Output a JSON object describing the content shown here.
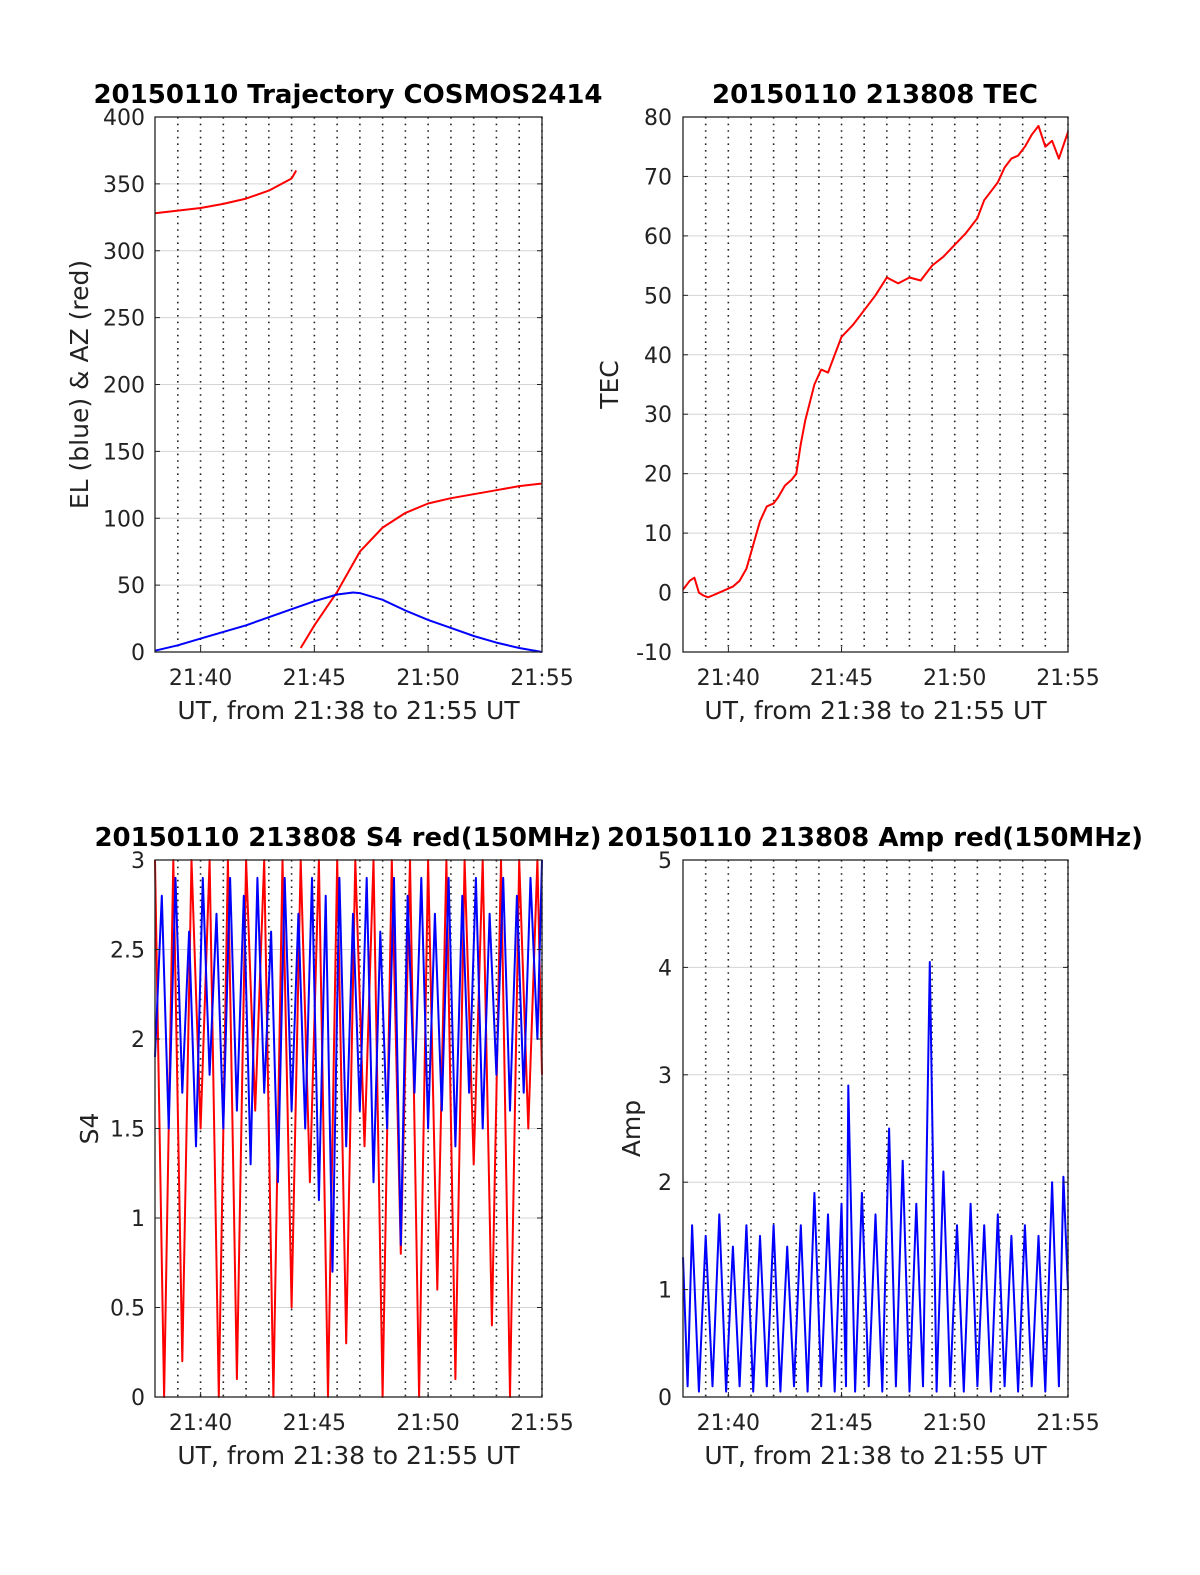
{
  "figure": {
    "background": "#ffffff",
    "colors": {
      "red": "#ff0000",
      "blue": "#0000ff",
      "axis": "#222222"
    }
  },
  "chart_data": [
    {
      "id": "trajectory",
      "type": "line",
      "title": "20150110 Trajectory COSMOS2414",
      "xlabel": "UT, from 21:38 to 21:55 UT",
      "ylabel": "EL (blue) & AZ (red)",
      "xlim": [
        21.6333,
        21.9167
      ],
      "ylim": [
        0,
        400
      ],
      "yticks": [
        0,
        50,
        100,
        150,
        200,
        250,
        300,
        350,
        400
      ],
      "ytick_labels": [
        "0",
        "50",
        "100",
        "150",
        "200",
        "250",
        "300",
        "350",
        "400"
      ],
      "xticks": [
        21.6667,
        21.75,
        21.8333,
        21.9167
      ],
      "xtick_labels": [
        "21:40",
        "21:45",
        "21:50",
        "21:55"
      ],
      "grid": "dotted-vertical-every-minute",
      "series": [
        {
          "color": "#ff0000",
          "x": [
            21.6333,
            21.65,
            21.6667,
            21.6833,
            21.7,
            21.7167,
            21.7333,
            21.7367,
            21.7368,
            21.74,
            21.75,
            21.7667,
            21.7833,
            21.8,
            21.8167,
            21.8333,
            21.85,
            21.8667,
            21.8833,
            21.9,
            21.9167
          ],
          "y": [
            328,
            330,
            332,
            335,
            339,
            345,
            354,
            360,
            null,
            3,
            20,
            45,
            75,
            93,
            104,
            111,
            115,
            118,
            121,
            124,
            126
          ]
        },
        {
          "color": "#0000ff",
          "x": [
            21.6333,
            21.65,
            21.6667,
            21.6833,
            21.7,
            21.7167,
            21.7333,
            21.75,
            21.7667,
            21.7783,
            21.7833,
            21.8,
            21.8167,
            21.8333,
            21.85,
            21.8667,
            21.8833,
            21.9,
            21.9167
          ],
          "y": [
            1,
            5,
            10,
            15,
            20,
            26,
            32,
            38,
            43,
            44.5,
            44,
            39,
            31,
            24,
            18,
            12,
            7,
            3,
            0
          ]
        }
      ]
    },
    {
      "id": "tec",
      "type": "line",
      "title": "20150110 213808 TEC",
      "xlabel": "UT, from 21:38 to 21:55 UT",
      "ylabel": "TEC",
      "xlim": [
        21.6333,
        21.9167
      ],
      "ylim": [
        -10,
        80
      ],
      "yticks": [
        -10,
        0,
        10,
        20,
        30,
        40,
        50,
        60,
        70,
        80
      ],
      "ytick_labels": [
        "-10",
        "0",
        "10",
        "20",
        "30",
        "40",
        "50",
        "60",
        "70",
        "80"
      ],
      "xticks": [
        21.6667,
        21.75,
        21.8333,
        21.9167
      ],
      "xtick_labels": [
        "21:40",
        "21:45",
        "21:50",
        "21:55"
      ],
      "grid": "dotted-vertical-every-minute",
      "series": [
        {
          "color": "#ff0000",
          "x": [
            21.6333,
            21.6383,
            21.6417,
            21.645,
            21.6483,
            21.6517,
            21.655,
            21.66,
            21.665,
            21.67,
            21.675,
            21.68,
            21.685,
            21.69,
            21.695,
            21.7,
            21.7033,
            21.7083,
            21.7133,
            21.7167,
            21.72,
            21.7233,
            21.7267,
            21.73,
            21.735,
            21.74,
            21.745,
            21.75,
            21.7583,
            21.7667,
            21.775,
            21.7833,
            21.7917,
            21.8,
            21.8083,
            21.8167,
            21.825,
            21.8333,
            21.8417,
            21.85,
            21.855,
            21.86,
            21.865,
            21.87,
            21.875,
            21.88,
            21.885,
            21.89,
            21.895,
            21.9,
            21.905,
            21.91,
            21.9167
          ],
          "y": [
            0.5,
            2,
            2.5,
            0,
            -0.5,
            -0.8,
            -0.5,
            0,
            0.5,
            1,
            2,
            4,
            8,
            12,
            14.5,
            15,
            16,
            18,
            19,
            20,
            25,
            29,
            32,
            35,
            37.5,
            37,
            40,
            43,
            45,
            47.5,
            50,
            53,
            52,
            53,
            52.5,
            55,
            56.5,
            58.5,
            60.5,
            63,
            66,
            67.5,
            69,
            71.5,
            73,
            73.5,
            75,
            77,
            78.5,
            75,
            76,
            73,
            77.5
          ]
        }
      ]
    },
    {
      "id": "s4",
      "type": "line",
      "title": "20150110 213808 S4 red(150MHz)",
      "xlabel": "UT, from 21:38 to 21:55 UT",
      "ylabel": "S4",
      "xlim": [
        21.6333,
        21.9167
      ],
      "ylim": [
        0,
        3
      ],
      "yticks": [
        0,
        0.5,
        1,
        1.5,
        2,
        2.5,
        3
      ],
      "ytick_labels": [
        "0",
        "0.5",
        "1",
        "1.5",
        "2",
        "2.5",
        "3"
      ],
      "xticks": [
        21.6667,
        21.75,
        21.8333,
        21.9167
      ],
      "xtick_labels": [
        "21:40",
        "21:45",
        "21:50",
        "21:55"
      ],
      "grid": "dotted-vertical-every-minute",
      "series": [
        {
          "color": "#ff0000",
          "x": [
            21.6333,
            21.64,
            21.6467,
            21.6533,
            21.66,
            21.6667,
            21.6733,
            21.68,
            21.6867,
            21.6933,
            21.7,
            21.7067,
            21.7133,
            21.72,
            21.7267,
            21.7333,
            21.74,
            21.7467,
            21.7533,
            21.76,
            21.7667,
            21.7733,
            21.78,
            21.7867,
            21.7933,
            21.8,
            21.8067,
            21.8133,
            21.82,
            21.8267,
            21.8333,
            21.84,
            21.8467,
            21.8533,
            21.86,
            21.8667,
            21.8733,
            21.88,
            21.8867,
            21.8933,
            21.9,
            21.9067,
            21.9133,
            21.9167
          ],
          "y": [
            3,
            0,
            3,
            0.2,
            3,
            1.5,
            3,
            0,
            3,
            0.1,
            3,
            1.6,
            3,
            0,
            3,
            0.5,
            3,
            1.2,
            3,
            0,
            3,
            0.3,
            3,
            1.4,
            3,
            0,
            3,
            0.8,
            3,
            0,
            3,
            0.6,
            3,
            0.1,
            3,
            1.3,
            3,
            0.4,
            3,
            0,
            3,
            1.5,
            3,
            1.8
          ]
        },
        {
          "color": "#0000ff",
          "x": [
            21.6333,
            21.6383,
            21.6433,
            21.6483,
            21.6533,
            21.6583,
            21.6633,
            21.6683,
            21.6733,
            21.6783,
            21.6833,
            21.6883,
            21.6933,
            21.6983,
            21.7033,
            21.7083,
            21.7133,
            21.7183,
            21.7233,
            21.7283,
            21.7333,
            21.7383,
            21.7433,
            21.7483,
            21.7533,
            21.7583,
            21.7633,
            21.7683,
            21.7733,
            21.7783,
            21.7833,
            21.7883,
            21.7933,
            21.7983,
            21.8033,
            21.8083,
            21.8133,
            21.8183,
            21.8233,
            21.8283,
            21.8333,
            21.8383,
            21.8433,
            21.8483,
            21.8533,
            21.8583,
            21.8633,
            21.8683,
            21.8733,
            21.8783,
            21.8833,
            21.8883,
            21.8933,
            21.8983,
            21.9033,
            21.9083,
            21.9133,
            21.9167
          ],
          "y": [
            1.9,
            2.8,
            1.5,
            2.9,
            1.7,
            2.6,
            1.4,
            2.9,
            1.8,
            2.7,
            1.5,
            2.9,
            1.6,
            2.8,
            1.3,
            2.9,
            1.7,
            2.6,
            1.2,
            2.9,
            1.6,
            2.7,
            1.5,
            2.9,
            1.1,
            2.8,
            0.7,
            2.9,
            1.4,
            2.7,
            1.6,
            2.9,
            1.2,
            2.6,
            1.5,
            2.9,
            0.85,
            2.8,
            1.7,
            2.9,
            1.5,
            2.7,
            1.6,
            2.9,
            1.4,
            2.8,
            1.7,
            2.9,
            1.5,
            2.7,
            1.8,
            2.9,
            1.6,
            2.8,
            1.7,
            2.9,
            2.0,
            3.0
          ]
        }
      ]
    },
    {
      "id": "amp",
      "type": "line",
      "title": "20150110 213808 Amp red(150MHz)",
      "xlabel": "UT, from 21:38 to 21:55 UT",
      "ylabel": "Amp",
      "xlim": [
        21.6333,
        21.9167
      ],
      "ylim": [
        0,
        5
      ],
      "yticks": [
        0,
        1,
        2,
        3,
        4,
        5
      ],
      "ytick_labels": [
        "0",
        "1",
        "2",
        "3",
        "4",
        "5"
      ],
      "xticks": [
        21.6667,
        21.75,
        21.8333,
        21.9167
      ],
      "xtick_labels": [
        "21:40",
        "21:45",
        "21:50",
        "21:55"
      ],
      "grid": "dotted-vertical-every-minute",
      "series": [
        {
          "color": "#0000ff",
          "x": [
            21.6333,
            21.6367,
            21.64,
            21.645,
            21.65,
            21.655,
            21.66,
            21.665,
            21.67,
            21.675,
            21.68,
            21.685,
            21.69,
            21.695,
            21.7,
            21.705,
            21.71,
            21.715,
            21.72,
            21.725,
            21.73,
            21.735,
            21.74,
            21.745,
            21.75,
            21.7533,
            21.755,
            21.76,
            21.765,
            21.77,
            21.775,
            21.78,
            21.785,
            21.79,
            21.795,
            21.8,
            21.805,
            21.81,
            21.815,
            21.82,
            21.825,
            21.83,
            21.835,
            21.84,
            21.845,
            21.85,
            21.855,
            21.86,
            21.865,
            21.87,
            21.875,
            21.88,
            21.885,
            21.89,
            21.895,
            21.9,
            21.905,
            21.91,
            21.9133,
            21.9167
          ],
          "y": [
            1.3,
            0.1,
            1.6,
            0.05,
            1.5,
            0.1,
            1.7,
            0.05,
            1.4,
            0.1,
            1.6,
            0.05,
            1.5,
            0.1,
            1.6,
            0.05,
            1.4,
            0.1,
            1.6,
            0.05,
            1.9,
            0.1,
            1.7,
            0.05,
            1.8,
            0.1,
            2.9,
            0.05,
            1.9,
            0.1,
            1.7,
            0.05,
            2.5,
            0.1,
            2.2,
            0.05,
            1.8,
            0.1,
            4.05,
            0.05,
            2.1,
            0.1,
            1.6,
            0.05,
            1.8,
            0.1,
            1.6,
            0.05,
            1.7,
            0.1,
            1.5,
            0.05,
            1.6,
            0.1,
            1.5,
            0.05,
            2.0,
            0.1,
            2.05,
            1.0
          ]
        }
      ]
    }
  ]
}
